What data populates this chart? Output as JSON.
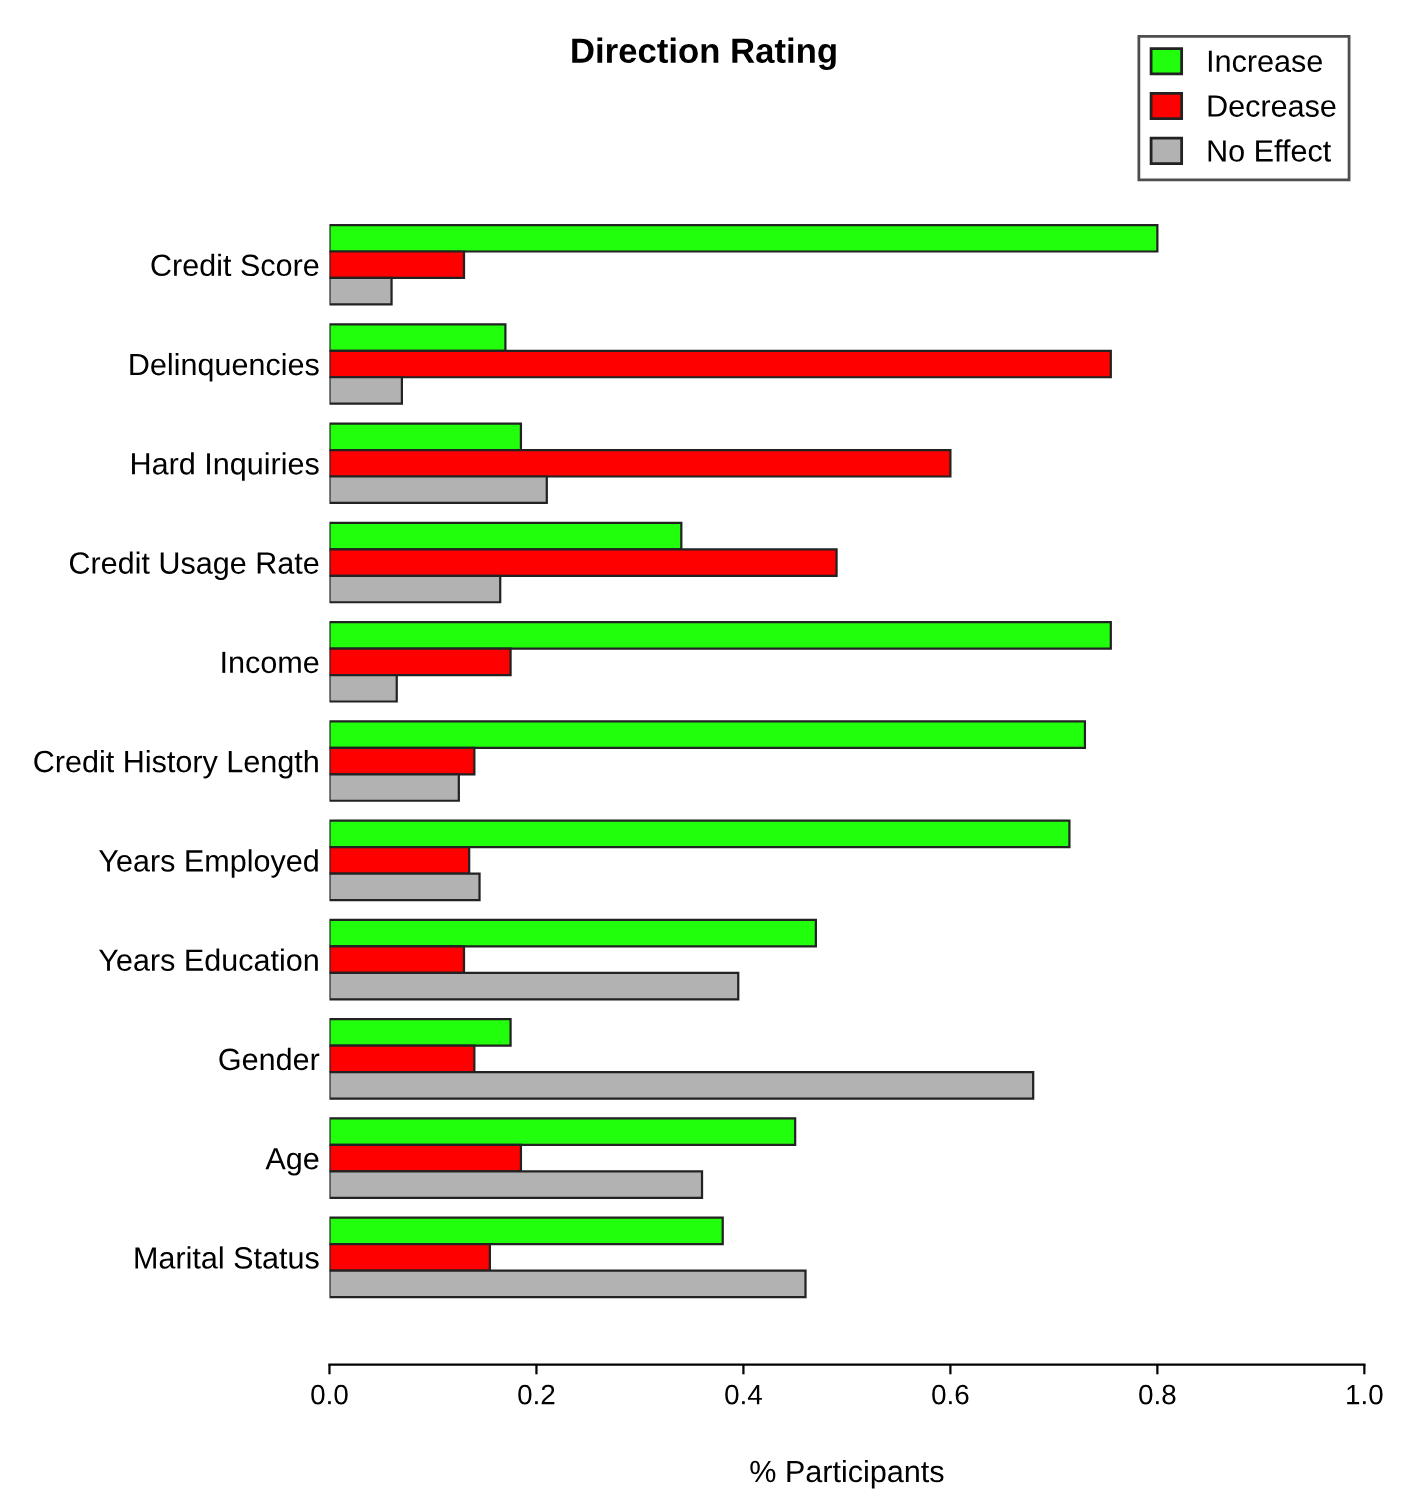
{
  "chart_data": {
    "type": "bar",
    "orientation": "horizontal",
    "title": "Direction Rating",
    "xlabel": "% Participants",
    "categories": [
      "Credit Score",
      "Delinquencies",
      "Hard Inquiries",
      "Credit Usage Rate",
      "Income",
      "Credit History Length",
      "Years Employed",
      "Years Education",
      "Gender",
      "Age",
      "Marital Status"
    ],
    "series": [
      {
        "name": "Increase",
        "color": "#22ff0d",
        "values": [
          0.8,
          0.17,
          0.185,
          0.34,
          0.755,
          0.73,
          0.715,
          0.47,
          0.175,
          0.45,
          0.38
        ]
      },
      {
        "name": "Decrease",
        "color": "#ff0000",
        "values": [
          0.13,
          0.755,
          0.6,
          0.49,
          0.175,
          0.14,
          0.135,
          0.13,
          0.14,
          0.185,
          0.155
        ]
      },
      {
        "name": "No Effect",
        "color": "#b2b2b2",
        "values": [
          0.06,
          0.07,
          0.21,
          0.165,
          0.065,
          0.125,
          0.145,
          0.395,
          0.68,
          0.36,
          0.46
        ]
      }
    ],
    "xlim": [
      0,
      1
    ],
    "xticks": [
      {
        "value": 0,
        "label": "0.0"
      },
      {
        "value": 0.2,
        "label": "0.2"
      },
      {
        "value": 0.4,
        "label": "0.4"
      },
      {
        "value": 0.6,
        "label": "0.6"
      },
      {
        "value": 0.8,
        "label": "0.8"
      },
      {
        "value": 1,
        "label": "1.0"
      }
    ],
    "legend": "top right",
    "grid": false
  }
}
